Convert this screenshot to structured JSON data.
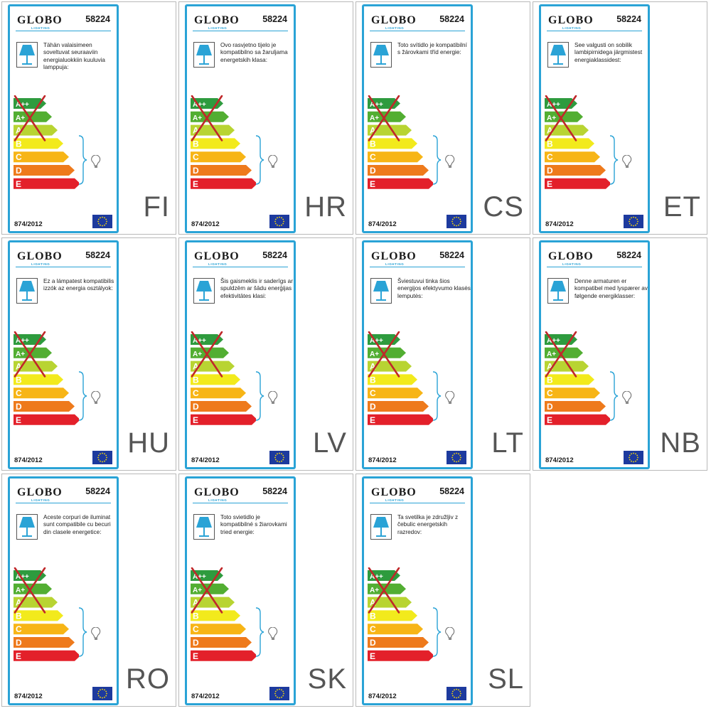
{
  "panels": [
    {
      "code": "FI",
      "brand": "GLOBO",
      "brand_sub": "LIGHTING",
      "model": "58224",
      "text": "Tähän valaisimeen soveltuvat seuraaviin energialuokkiin kuuluvia lamppuja:",
      "regulation": "874/2012"
    },
    {
      "code": "HR",
      "brand": "GLOBO",
      "brand_sub": "LIGHTING",
      "model": "58224",
      "text": "Ovo rasvjetno tijelo je kompatibilno sa žaruljama energetskih klasa:",
      "regulation": "874/2012"
    },
    {
      "code": "CS",
      "brand": "GLOBO",
      "brand_sub": "LIGHTING",
      "model": "58224",
      "text": "Toto svítidlo je kompatibilní s žárovkami tříd energie:",
      "regulation": "874/2012"
    },
    {
      "code": "ET",
      "brand": "GLOBO",
      "brand_sub": "LIGHTING",
      "model": "58224",
      "text": "See valgusti on sobilik lambipirnidega järgmistest energiaklassidest:",
      "regulation": "874/2012"
    },
    {
      "code": "HU",
      "brand": "GLOBO",
      "brand_sub": "LIGHTING",
      "model": "58224",
      "text": "Ez a lámpatest kompatibilis izzók az energia osztályok:",
      "regulation": "874/2012"
    },
    {
      "code": "LV",
      "brand": "GLOBO",
      "brand_sub": "LIGHTING",
      "model": "58224",
      "text": "Šis gaismeklis ir saderīgs ar spuldzēm ar šādu enerģijas efektivitātes klasi:",
      "regulation": "874/2012"
    },
    {
      "code": "LT",
      "brand": "GLOBO",
      "brand_sub": "LIGHTING",
      "model": "58224",
      "text": "Šviestuvui tinka šios energijos efektyvumo klasės lemputės:",
      "regulation": "874/2012"
    },
    {
      "code": "NB",
      "brand": "GLOBO",
      "brand_sub": "LIGHTING",
      "model": "58224",
      "text": "Denne armaturen er kompatibel med lyspærer av følgende energiklasser:",
      "regulation": "874/2012"
    },
    {
      "code": "RO",
      "brand": "GLOBO",
      "brand_sub": "LIGHTING",
      "model": "58224",
      "text": "Aceste corpuri de iluminat sunt compatibile cu becuri din clasele energetice:",
      "regulation": "874/2012"
    },
    {
      "code": "SK",
      "brand": "GLOBO",
      "brand_sub": "LIGHTING",
      "model": "58224",
      "text": "Toto svietidlo je kompatibilné s žiarovkami tried energie:",
      "regulation": "874/2012"
    },
    {
      "code": "SL",
      "brand": "GLOBO",
      "brand_sub": "LIGHTING",
      "model": "58224",
      "text": "Ta svetilka je združljiv z čebulic energetskih razredov:",
      "regulation": "874/2012"
    }
  ],
  "energy_classes": [
    {
      "label": "A++",
      "color": "#2e9b3e",
      "crossed": true
    },
    {
      "label": "A+",
      "color": "#52ae32",
      "crossed": true
    },
    {
      "label": "A",
      "color": "#b8d432",
      "crossed": true
    },
    {
      "label": "B",
      "color": "#f2ea1c",
      "crossed": false
    },
    {
      "label": "C",
      "color": "#f7b516",
      "crossed": false
    },
    {
      "label": "D",
      "color": "#ee7a1c",
      "crossed": false
    },
    {
      "label": "E",
      "color": "#e3202a",
      "crossed": false
    }
  ],
  "icons": {
    "lamp": "table-lamp-icon",
    "bulb": "light-bulb-icon",
    "flag": "eu-flag-icon"
  },
  "colors": {
    "frame": "#2aa3d6",
    "cross": "#c0282a",
    "eu_blue": "#1d3a9e",
    "eu_star": "#ffdd00"
  }
}
